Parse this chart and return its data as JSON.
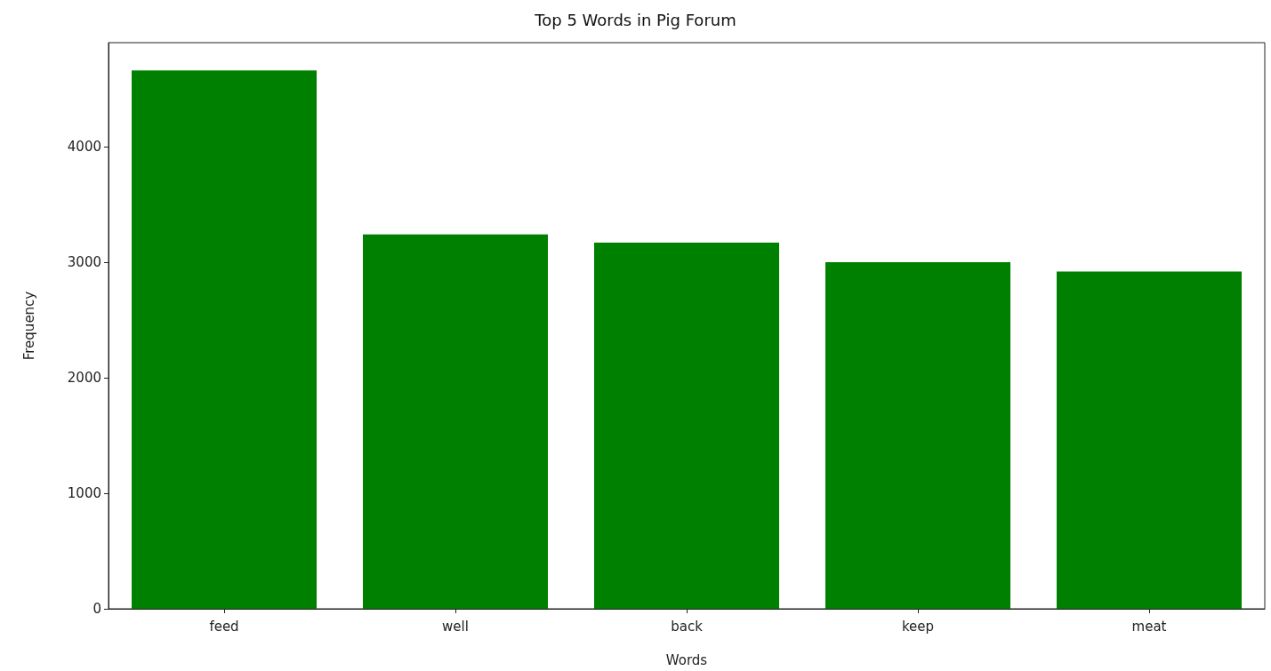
{
  "chart_data": {
    "type": "bar",
    "title": "Top 5 Words in Pig Forum",
    "xlabel": "Words",
    "ylabel": "Frequency",
    "categories": [
      "feed",
      "well",
      "back",
      "keep",
      "meat"
    ],
    "values": [
      4660,
      3240,
      3170,
      3000,
      2920
    ],
    "color": "#008000",
    "ylim": [
      0,
      4900
    ],
    "yticks": [
      0,
      1000,
      2000,
      3000,
      4000
    ],
    "grid": false
  }
}
